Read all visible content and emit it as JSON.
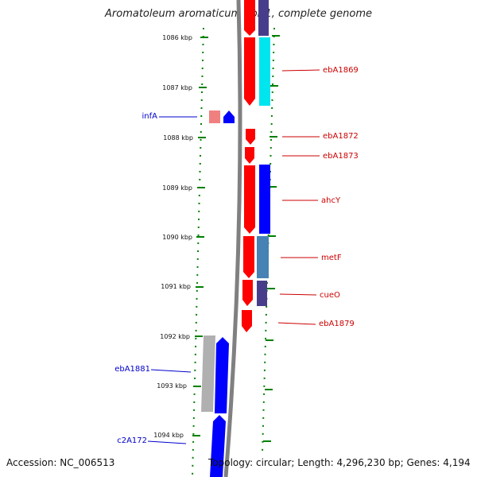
{
  "title": "Aromatoleum aromaticum EbN1, complete genome",
  "footer": {
    "accession": "Accession: NC_006513",
    "stats": "Topology: circular; Length: 4,296,230 bp; Genes: 4,194"
  },
  "kbp_labels": [
    "1086 kbp",
    "1087 kbp",
    "1088 kbp",
    "1089 kbp",
    "1090 kbp",
    "1091 kbp",
    "1092 kbp",
    "1093 kbp",
    "1094 kbp"
  ],
  "gene_labels_right": [
    "ebA1869",
    "ebA1872",
    "ebA1873",
    "ahcY",
    "metF",
    "cueO",
    "ebA1879"
  ],
  "gene_labels_left": [
    "infA",
    "ebA1881",
    "c2A172"
  ],
  "colors": {
    "forward": "#ff0000",
    "reverse_blue": "#0000ff",
    "cyan": "#00e5ee",
    "steel": "#4682b4",
    "slate": "#483d8b",
    "pink": "#f08080",
    "gray": "#b0b0b0",
    "right_label": "#cc0000",
    "left_label": "#0000cc",
    "tick": "#008000"
  }
}
